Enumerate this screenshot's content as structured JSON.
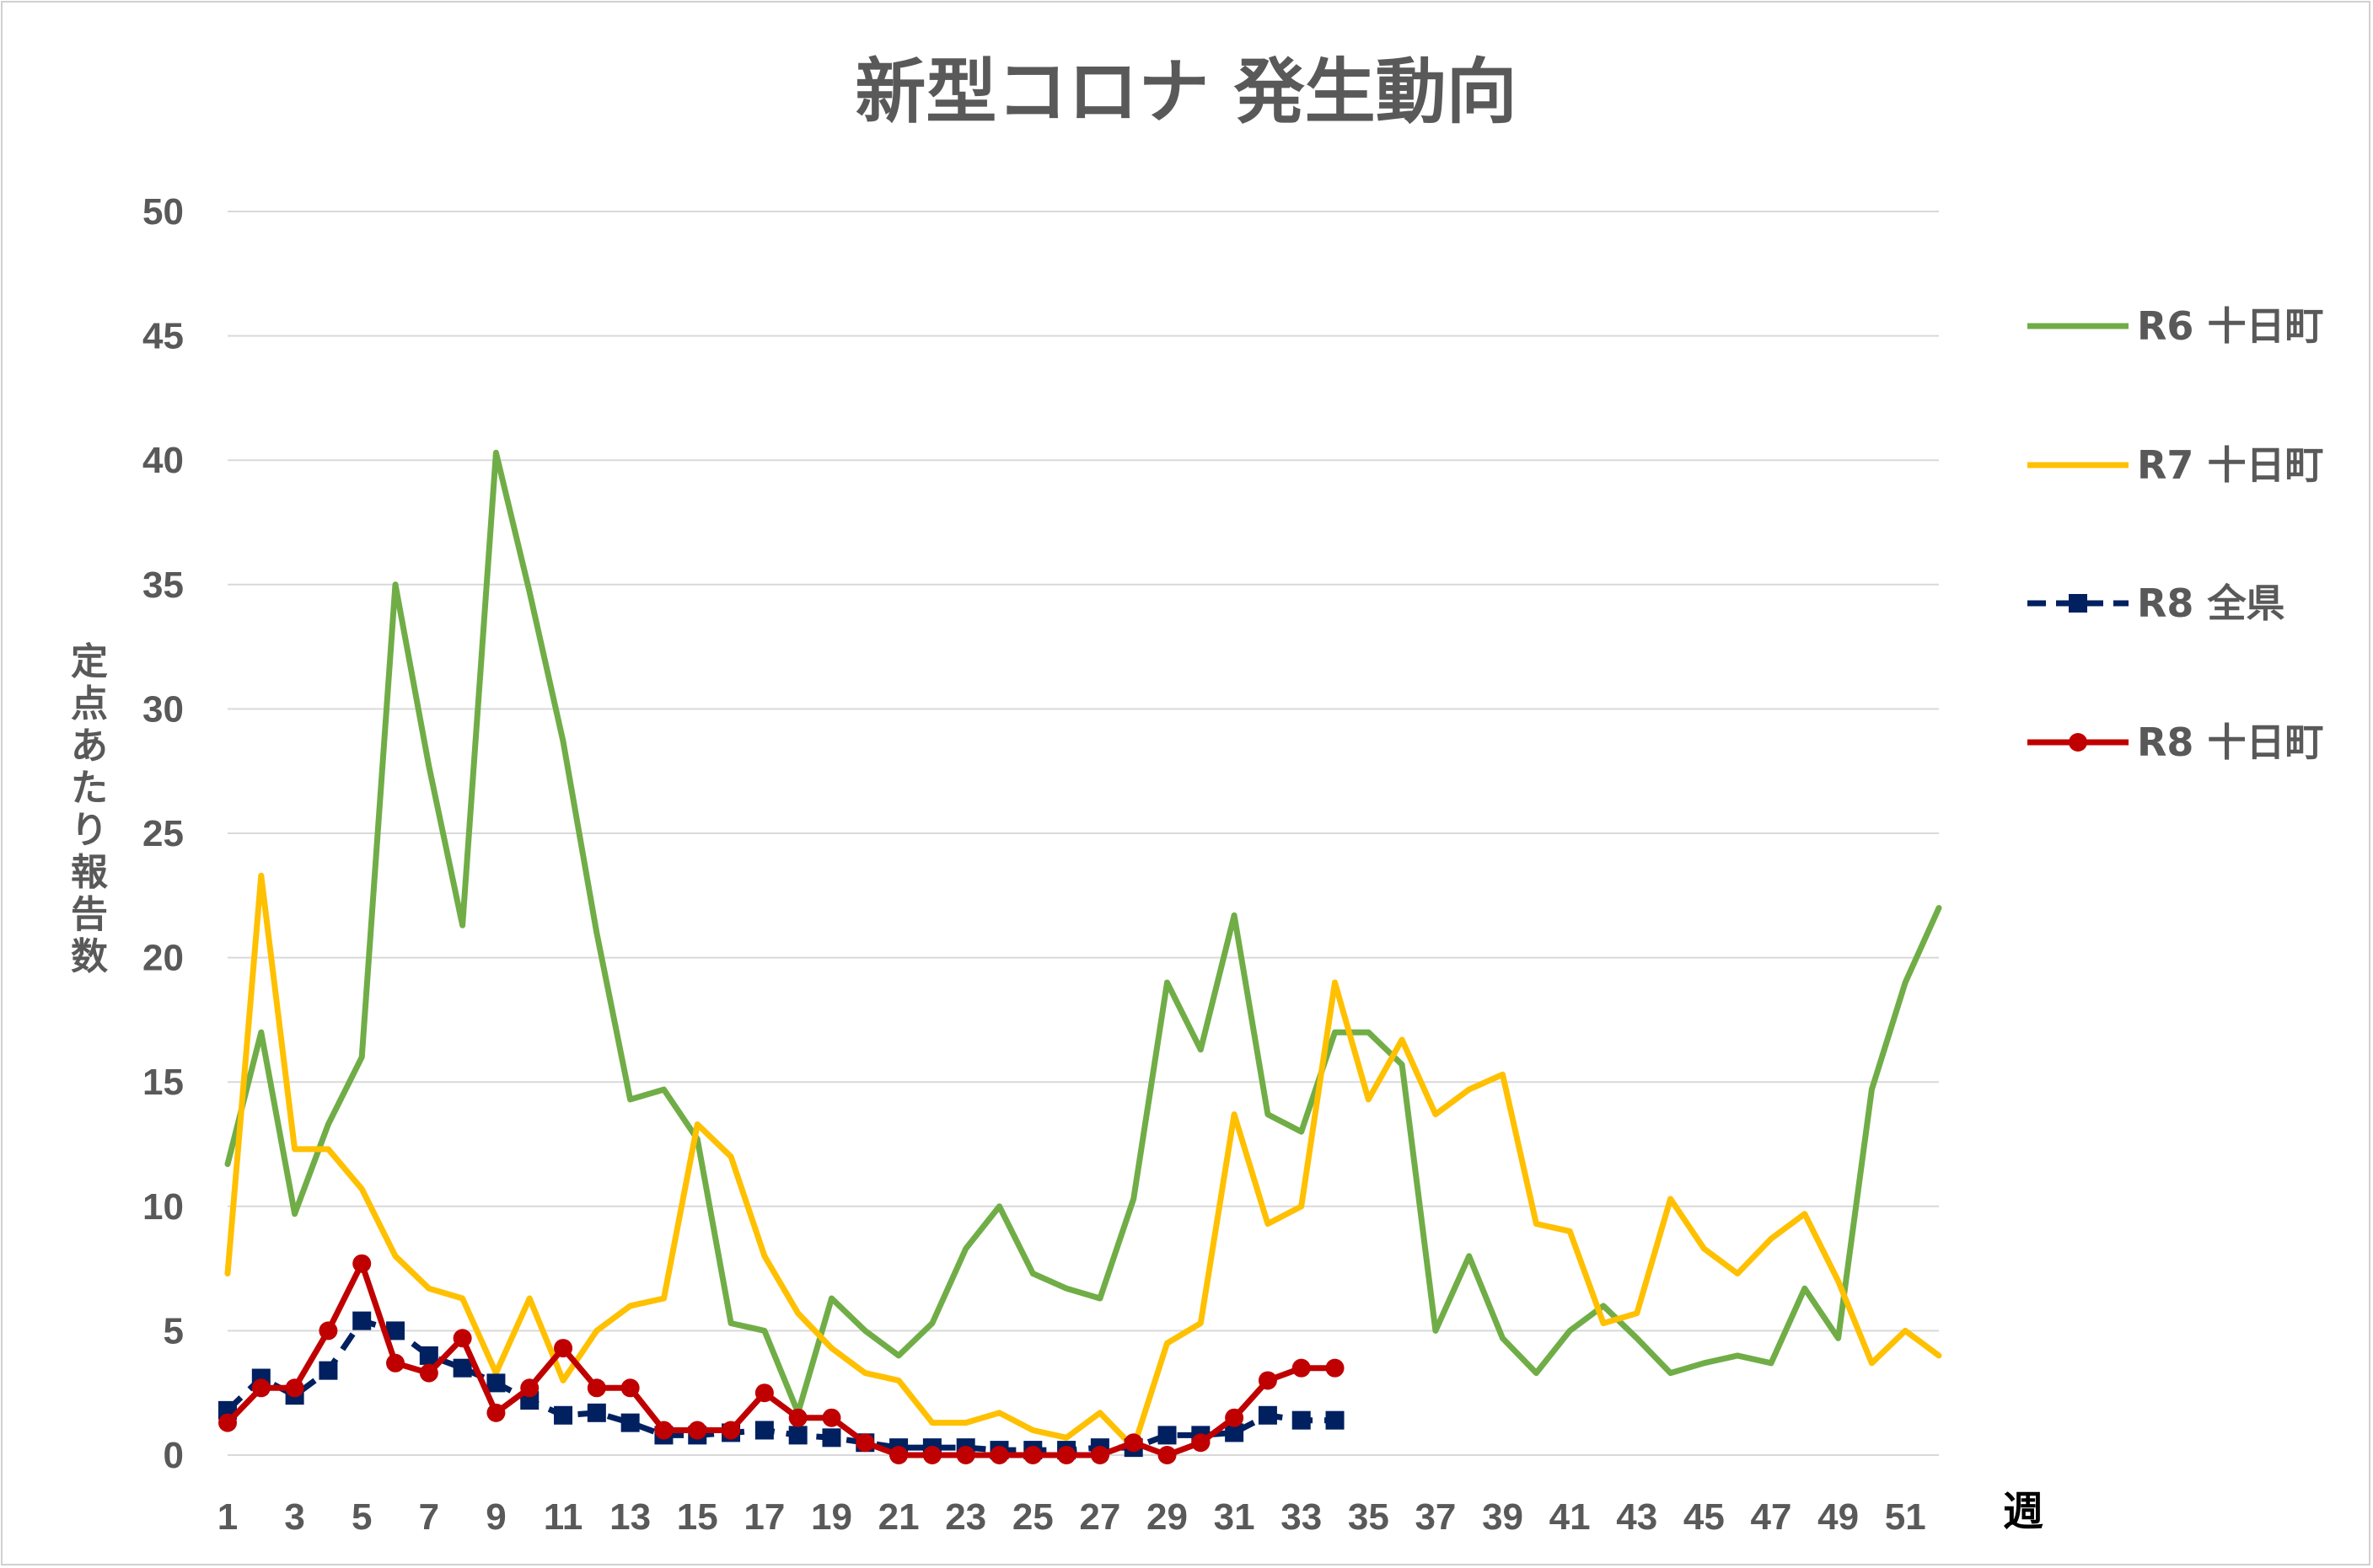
{
  "chart_data": {
    "type": "line",
    "title": "新型コロナ 発生動向",
    "xlabel": "週",
    "ylabel": "定点あたり報告数",
    "ylim": [
      0,
      50
    ],
    "yticks": [
      0,
      5,
      10,
      15,
      20,
      25,
      30,
      35,
      40,
      45,
      50
    ],
    "xlim": [
      1,
      52
    ],
    "xticks": [
      1,
      3,
      5,
      7,
      9,
      11,
      13,
      15,
      17,
      19,
      21,
      23,
      25,
      27,
      29,
      31,
      33,
      35,
      37,
      39,
      41,
      43,
      45,
      47,
      49,
      51
    ],
    "grid": "horizontal",
    "legend_position": "right",
    "series": [
      {
        "name": "R6 十日町",
        "color": "#70ad47",
        "style": "solid",
        "marker": "none",
        "x": [
          1,
          2,
          3,
          4,
          5,
          6,
          7,
          8,
          9,
          10,
          11,
          12,
          13,
          14,
          15,
          16,
          17,
          18,
          19,
          20,
          21,
          22,
          23,
          24,
          25,
          26,
          27,
          28,
          29,
          30,
          31,
          32,
          33,
          34,
          35,
          36,
          37,
          38,
          39,
          40,
          41,
          42,
          43,
          44,
          45,
          46,
          47,
          48,
          49,
          50,
          51,
          52
        ],
        "values": [
          11.7,
          17.0,
          9.7,
          13.3,
          16.0,
          35.0,
          27.7,
          21.3,
          40.3,
          34.7,
          28.7,
          21.0,
          14.3,
          14.7,
          12.7,
          5.3,
          5.0,
          1.7,
          6.3,
          5.0,
          4.0,
          5.3,
          8.3,
          10.0,
          7.3,
          6.7,
          6.3,
          10.3,
          19.0,
          16.3,
          21.7,
          13.7,
          13.0,
          17.0,
          17.0,
          15.7,
          5.0,
          8.0,
          4.7,
          3.3,
          5.0,
          6.0,
          4.7,
          3.3,
          3.7,
          4.0,
          3.7,
          6.7,
          4.7,
          14.7,
          19.0,
          22.0
        ]
      },
      {
        "name": "R7 十日町",
        "color": "#ffc000",
        "style": "solid",
        "marker": "none",
        "x": [
          1,
          2,
          3,
          4,
          5,
          6,
          7,
          8,
          9,
          10,
          11,
          12,
          13,
          14,
          15,
          16,
          17,
          18,
          19,
          20,
          21,
          22,
          23,
          24,
          25,
          26,
          27,
          28,
          29,
          30,
          31,
          32,
          33,
          34,
          35,
          36,
          37,
          38,
          39,
          40,
          41,
          42,
          43,
          44,
          45,
          46,
          47,
          48,
          49,
          50,
          51,
          52
        ],
        "values": [
          7.3,
          23.3,
          12.3,
          12.3,
          10.7,
          8.0,
          6.7,
          6.3,
          3.3,
          6.3,
          3.0,
          5.0,
          6.0,
          6.3,
          13.3,
          12.0,
          8.0,
          5.7,
          4.3,
          3.3,
          3.0,
          1.3,
          1.3,
          1.7,
          1.0,
          0.7,
          1.7,
          0.3,
          4.5,
          5.3,
          13.7,
          9.3,
          10.0,
          19.0,
          14.3,
          16.7,
          13.7,
          14.7,
          15.3,
          9.3,
          9.0,
          5.3,
          5.7,
          10.3,
          8.3,
          7.3,
          8.7,
          9.7,
          7.0,
          3.7,
          5.0,
          4.0
        ]
      },
      {
        "name": "R8 全県",
        "color": "#002060",
        "style": "dashed",
        "marker": "square",
        "x": [
          1,
          2,
          3,
          4,
          5,
          6,
          7,
          8,
          9,
          10,
          11,
          12,
          13,
          14,
          15,
          16,
          17,
          18,
          19,
          20,
          21,
          22,
          23,
          24,
          25,
          26,
          27,
          28,
          29,
          30,
          31,
          32,
          33,
          34
        ],
        "values": [
          1.8,
          3.1,
          2.4,
          3.4,
          5.4,
          5.0,
          4.0,
          3.5,
          2.9,
          2.2,
          1.6,
          1.7,
          1.3,
          0.8,
          0.8,
          0.9,
          1.0,
          0.8,
          0.7,
          0.5,
          0.3,
          0.3,
          0.3,
          0.2,
          0.2,
          0.2,
          0.3,
          0.3,
          0.8,
          0.8,
          0.9,
          1.6,
          1.4,
          1.4
        ]
      },
      {
        "name": "R8 十日町",
        "color": "#c00000",
        "style": "solid",
        "marker": "circle",
        "x": [
          1,
          2,
          3,
          4,
          5,
          6,
          7,
          8,
          9,
          10,
          11,
          12,
          13,
          14,
          15,
          16,
          17,
          18,
          19,
          20,
          21,
          22,
          23,
          24,
          25,
          26,
          27,
          28,
          29,
          30,
          31,
          32,
          33,
          34
        ],
        "values": [
          1.3,
          2.7,
          2.7,
          5.0,
          7.7,
          3.7,
          3.3,
          4.7,
          1.7,
          2.7,
          4.3,
          2.7,
          2.7,
          1.0,
          1.0,
          1.0,
          2.5,
          1.5,
          1.5,
          0.5,
          0.0,
          0.0,
          0.0,
          0.0,
          0.0,
          0.0,
          0.0,
          0.5,
          0.0,
          0.5,
          1.5,
          3.0,
          3.5,
          3.5
        ]
      }
    ]
  }
}
